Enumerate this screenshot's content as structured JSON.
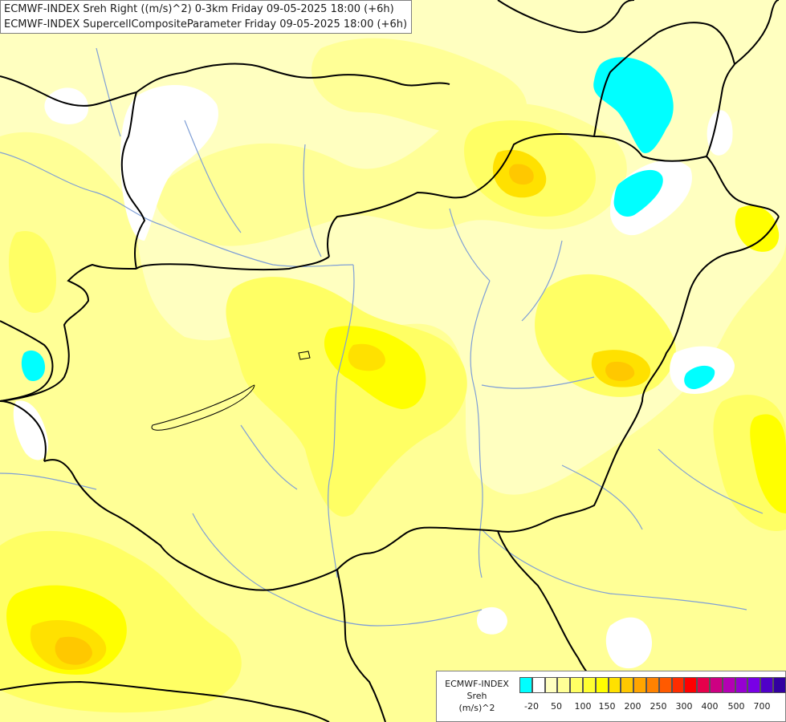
{
  "title": {
    "line1": "ECMWF-INDEX Sreh Right ((m/s)^2) 0-3km Friday 09-05-2025 18:00 (+6h)",
    "line2": "ECMWF-INDEX SupercellCompositeParameter Friday 09-05-2025 18:00 (+6h)"
  },
  "legend": {
    "line1": "ECMWF-INDEX",
    "line2": "Sreh",
    "line3": "(m/s)^2",
    "ticks": [
      "-20",
      "50",
      "100",
      "150",
      "200",
      "250",
      "300",
      "400",
      "500",
      "700"
    ],
    "colors": [
      "#00ffff",
      "#ffffff",
      "#ffffc0",
      "#ffff96",
      "#ffff64",
      "#ffff32",
      "#ffff00",
      "#ffe100",
      "#ffc800",
      "#ffa500",
      "#ff8200",
      "#ff5a00",
      "#ff2d00",
      "#ff0000",
      "#e6004b",
      "#cd0082",
      "#b400b4",
      "#9600d2",
      "#7800e6",
      "#5000c8",
      "#3200a0",
      "#140078"
    ]
  },
  "map": {
    "field_colors": {
      "base": "#ffffc0",
      "light": "#ffff96",
      "mid": "#ffff64",
      "strong": "#ffff32",
      "yellow": "#ffff00",
      "amber": "#ffe100",
      "orange": "#ffc800",
      "cyan": "#00ffff",
      "white": "#ffffff"
    },
    "border_color": "#000000",
    "river_color": "#7f9fd6"
  }
}
